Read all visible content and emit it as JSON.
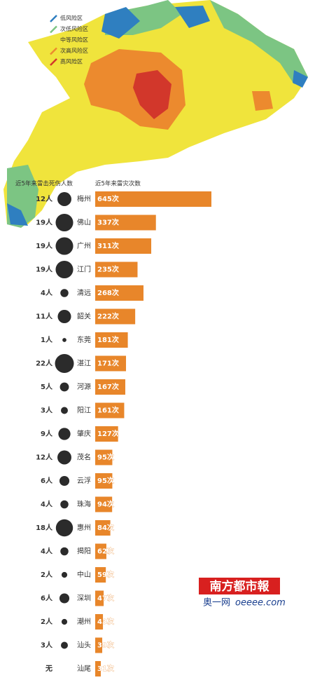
{
  "map_legend": {
    "items": [
      {
        "label": "低风险区",
        "color": "#2f7fc0"
      },
      {
        "label": "次低风险区",
        "color": "#7cc583"
      },
      {
        "label": "中等风险区",
        "color": "#f0e43c"
      },
      {
        "label": "次高风险区",
        "color": "#ec8a2e"
      },
      {
        "label": "高风险区",
        "color": "#d2372b"
      }
    ]
  },
  "chart_data": [
    {
      "type": "bubble",
      "title": "近5年来雷击死伤人数",
      "color": "#2b2b2b",
      "values": [
        12,
        19,
        19,
        19,
        4,
        11,
        1,
        22,
        5,
        3,
        9,
        12,
        6,
        4,
        18,
        4,
        2,
        6,
        2,
        3,
        0
      ],
      "value_labels": [
        "12人",
        "19人",
        "19人",
        "19人",
        "4人",
        "11人",
        "1人",
        "22人",
        "5人",
        "3人",
        "9人",
        "12人",
        "6人",
        "4人",
        "18人",
        "4人",
        "2人",
        "6人",
        "2人",
        "3人",
        "无"
      ]
    },
    {
      "type": "bar",
      "title": "近5年来雷灾次数",
      "color": "#e8862a",
      "categories": [
        "梅州",
        "佛山",
        "广州",
        "江门",
        "清远",
        "韶关",
        "东莞",
        "湛江",
        "河源",
        "阳江",
        "肇庆",
        "茂名",
        "云浮",
        "珠海",
        "惠州",
        "揭阳",
        "中山",
        "深圳",
        "潮州",
        "汕头",
        "汕尾"
      ],
      "values": [
        645,
        337,
        311,
        235,
        268,
        222,
        181,
        171,
        167,
        161,
        127,
        95,
        95,
        94,
        84,
        62,
        59,
        47,
        43,
        39,
        31
      ],
      "value_labels": [
        "645次",
        "337次",
        "311次",
        "235次",
        "268次",
        "222次",
        "181次",
        "171次",
        "167次",
        "161次",
        "127次",
        "95次",
        "95次",
        "94次",
        "84次",
        "62次",
        "59次",
        "47次",
        "43次",
        "39次",
        "31次"
      ]
    }
  ],
  "watermark": {
    "brand": "南方都市報",
    "site": "奥一网",
    "url": "oeeee.com"
  }
}
